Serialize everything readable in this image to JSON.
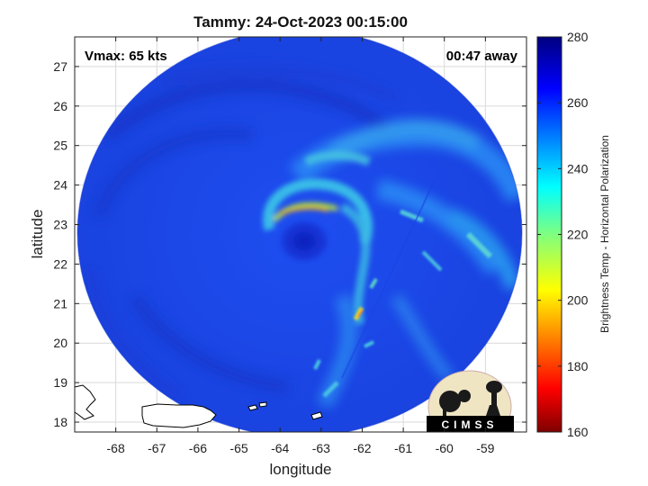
{
  "title": "Tammy: 24-Oct-2023 00:15:00",
  "vmax_label": "Vmax: 65 kts",
  "time_offset_label": "00:47 away",
  "xlabel": "longitude",
  "ylabel": "latitude",
  "colorbar_label": "Brightness Temp - Horizontal Polarization",
  "logo_text": "CIMSS",
  "map": {
    "lon_range": [
      -69,
      -58
    ],
    "lat_range": [
      17.75,
      27.75
    ],
    "lon_ticks": [
      "-68",
      "-67",
      "-66",
      "-65",
      "-64",
      "-63",
      "-62",
      "-61",
      "-60",
      "-59"
    ],
    "lat_ticks": [
      "18",
      "19",
      "20",
      "21",
      "22",
      "23",
      "24",
      "25",
      "26",
      "27"
    ],
    "storm_center": [
      -63.7,
      22.6
    ],
    "swath_center": [
      -64.0,
      22.7
    ],
    "swath_radius_deg": 5.3,
    "grid": true
  },
  "colorbar": {
    "min": 160,
    "max": 280,
    "ticks": [
      "160",
      "180",
      "200",
      "220",
      "240",
      "260",
      "280"
    ],
    "colormap": "jet"
  }
}
